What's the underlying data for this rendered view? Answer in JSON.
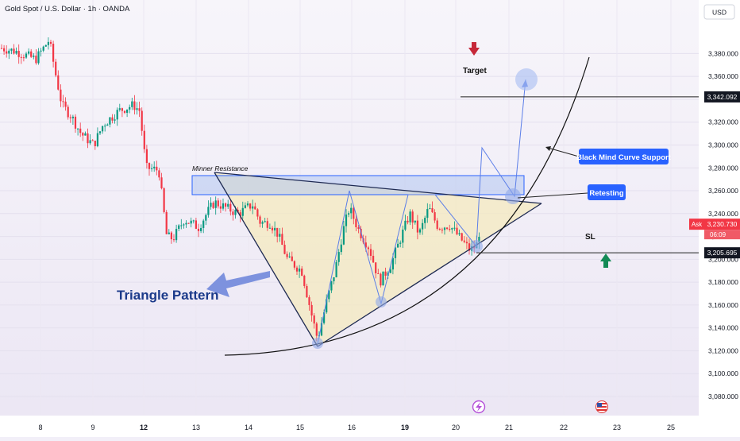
{
  "header": {
    "title": "Gold Spot / U.S. Dollar · 1h · OANDA"
  },
  "currency_label": "USD",
  "chart_data": {
    "type": "candlestick",
    "symbol": "Gold Spot / U.S. Dollar",
    "interval": "1h",
    "source": "OANDA",
    "y_ticks": [
      3080,
      3100,
      3120,
      3140,
      3160,
      3180,
      3200,
      3220,
      3240,
      3260,
      3280,
      3300,
      3320,
      3340,
      3360,
      3380
    ],
    "y_tick_labels": [
      "3,080.000",
      "3,100.000",
      "3,120.000",
      "3,140.000",
      "3,160.000",
      "3,180.000",
      "3,200.000",
      "3,220.000",
      "3,240.000",
      "3,260.000",
      "3,280.000",
      "3,300.000",
      "3,320.000",
      "3,340.000",
      "3,360.000",
      "3,380.000"
    ],
    "ylim": [
      3070,
      3400
    ],
    "x_ticks": [
      {
        "label": "8",
        "bold": false
      },
      {
        "label": "9",
        "bold": false
      },
      {
        "label": "12",
        "bold": true
      },
      {
        "label": "13",
        "bold": false
      },
      {
        "label": "14",
        "bold": false
      },
      {
        "label": "15",
        "bold": false
      },
      {
        "label": "16",
        "bold": false
      },
      {
        "label": "19",
        "bold": true
      },
      {
        "label": "20",
        "bold": false
      },
      {
        "label": "21",
        "bold": false
      },
      {
        "label": "22",
        "bold": false
      },
      {
        "label": "23",
        "bold": false
      },
      {
        "label": "25",
        "bold": false
      }
    ],
    "price_markers": {
      "target": {
        "value": 3342.092,
        "label": "3,342.092"
      },
      "ask": {
        "value": 3230.73,
        "label": "3,230.730",
        "tag": "Ask",
        "countdown": "06:09"
      },
      "sl": {
        "value": 3205.695,
        "label": "3,205.695"
      }
    },
    "resistance_zone": [
      3247,
      3262
    ],
    "annotations": {
      "minner_resistance": "Minner Resistance",
      "target": "Target",
      "sl": "SL",
      "triangle_pattern": "Triangle Pattern",
      "retesting": "Retesting",
      "curve_support": "Black Mind Curve Support"
    },
    "colors": {
      "up": "#089981",
      "down": "#f23645",
      "callout": "#2962ff",
      "zone": "#b3c6f0"
    }
  }
}
